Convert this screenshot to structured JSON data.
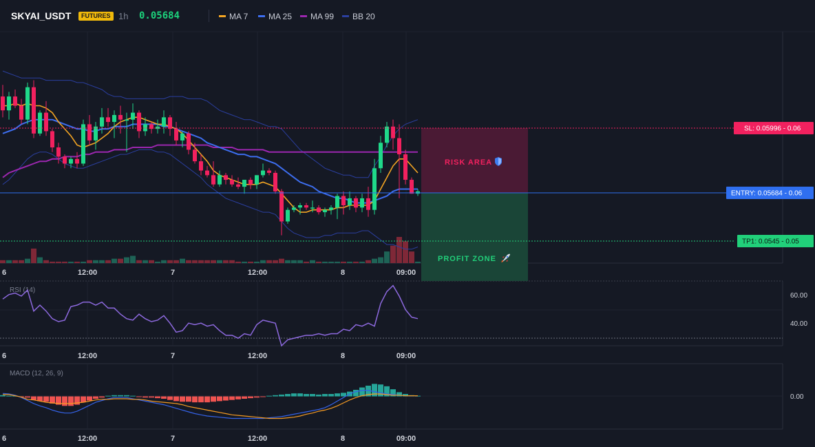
{
  "header": {
    "symbol": "SKYAI_USDT",
    "badge": "FUTURES",
    "timeframe": "1h",
    "last_price": "0.05684",
    "legend": [
      {
        "label": "MA 7",
        "color": "#f5a623"
      },
      {
        "label": "MA 25",
        "color": "#3d6ef0"
      },
      {
        "label": "MA 99",
        "color": "#9c27b0"
      },
      {
        "label": "BB 20",
        "color": "#2b3fa0"
      }
    ]
  },
  "colors": {
    "background": "#151924",
    "up": "#1fd98a",
    "down": "#f2215f",
    "grid": "#232838",
    "entry": "#2f6ff0",
    "sl": "#f2215f",
    "tp": "#21d07a",
    "rsi": "#8e6ae0",
    "macd_line": "#3563e9",
    "macd_signal": "#f59b23",
    "hist_up": "#26a69a",
    "hist_down": "#ef5350"
  },
  "annotations": {
    "risk_label": "RISK AREA",
    "profit_label": "PROFIT ZONE",
    "sl_label": "SL: 0.05996 - 0.06",
    "entry_label": "ENTRY: 0.05684 - 0.06",
    "tp_label": "TP1: 0.0545 - 0.05"
  },
  "chart_data": [
    {
      "type": "candlestick",
      "title": "SKYAI_USDT",
      "x_tick_labels": [
        "6",
        "12:00",
        "7",
        "12:00",
        "8",
        "09:00"
      ],
      "y_range": [
        0.0538,
        0.0638
      ],
      "levels": {
        "sl": 0.05996,
        "entry": 0.05684,
        "tp1": 0.0545
      },
      "candles": [
        [
          0.061,
          0.0615,
          0.0601,
          0.0604
        ],
        [
          0.0604,
          0.0612,
          0.06,
          0.061
        ],
        [
          0.061,
          0.0613,
          0.0605,
          0.0606
        ],
        [
          0.0606,
          0.0609,
          0.0598,
          0.06
        ],
        [
          0.06,
          0.0616,
          0.0598,
          0.0614
        ],
        [
          0.0614,
          0.0617,
          0.0592,
          0.0594
        ],
        [
          0.0594,
          0.0604,
          0.0593,
          0.0603
        ],
        [
          0.0603,
          0.0608,
          0.0593,
          0.0595
        ],
        [
          0.0595,
          0.0596,
          0.0586,
          0.0588
        ],
        [
          0.0588,
          0.059,
          0.0581,
          0.0584
        ],
        [
          0.0584,
          0.0585,
          0.0579,
          0.0581
        ],
        [
          0.0581,
          0.0584,
          0.0579,
          0.0583
        ],
        [
          0.0583,
          0.0586,
          0.0579,
          0.0581
        ],
        [
          0.0581,
          0.06,
          0.058,
          0.0598
        ],
        [
          0.0598,
          0.0602,
          0.0589,
          0.0591
        ],
        [
          0.0591,
          0.0599,
          0.0587,
          0.0597
        ],
        [
          0.0597,
          0.0605,
          0.0594,
          0.0601
        ],
        [
          0.0601,
          0.0605,
          0.0597,
          0.0599
        ],
        [
          0.0599,
          0.0604,
          0.0592,
          0.0602
        ],
        [
          0.0602,
          0.0606,
          0.0594,
          0.06
        ],
        [
          0.06,
          0.0603,
          0.0586,
          0.06
        ],
        [
          0.06,
          0.0607,
          0.0596,
          0.0603
        ],
        [
          0.0603,
          0.0604,
          0.0592,
          0.0595
        ],
        [
          0.0595,
          0.0601,
          0.0593,
          0.0598
        ],
        [
          0.0598,
          0.0599,
          0.0594,
          0.0596
        ],
        [
          0.0596,
          0.06,
          0.0594,
          0.0597
        ],
        [
          0.0597,
          0.0604,
          0.0594,
          0.0601
        ],
        [
          0.0601,
          0.0602,
          0.0593,
          0.0596
        ],
        [
          0.0596,
          0.0599,
          0.0589,
          0.0591
        ],
        [
          0.0591,
          0.0595,
          0.0588,
          0.0594
        ],
        [
          0.0594,
          0.0595,
          0.0585,
          0.0587
        ],
        [
          0.0587,
          0.059,
          0.0581,
          0.0582
        ],
        [
          0.0582,
          0.0585,
          0.0576,
          0.0578
        ],
        [
          0.0578,
          0.058,
          0.0575,
          0.0576
        ],
        [
          0.0576,
          0.0582,
          0.0571,
          0.0572
        ],
        [
          0.0572,
          0.0578,
          0.0571,
          0.0576
        ],
        [
          0.0576,
          0.0577,
          0.0572,
          0.0574
        ],
        [
          0.0574,
          0.0576,
          0.0571,
          0.0572
        ],
        [
          0.0572,
          0.0575,
          0.057,
          0.0571
        ],
        [
          0.0571,
          0.0574,
          0.0568,
          0.0574
        ],
        [
          0.0574,
          0.0575,
          0.057,
          0.0572
        ],
        [
          0.0572,
          0.0576,
          0.057,
          0.0576
        ],
        [
          0.0576,
          0.0581,
          0.0575,
          0.0578
        ],
        [
          0.0578,
          0.0579,
          0.0576,
          0.0577
        ],
        [
          0.0577,
          0.0578,
          0.0568,
          0.0569
        ],
        [
          0.0569,
          0.057,
          0.055,
          0.0556
        ],
        [
          0.0556,
          0.0562,
          0.0555,
          0.0561
        ],
        [
          0.0561,
          0.0563,
          0.056,
          0.0562
        ],
        [
          0.0562,
          0.0564,
          0.0559,
          0.0563
        ],
        [
          0.0563,
          0.0564,
          0.0561,
          0.0562
        ],
        [
          0.0562,
          0.0565,
          0.056,
          0.0562
        ],
        [
          0.0562,
          0.0563,
          0.0559,
          0.056
        ],
        [
          0.056,
          0.0562,
          0.0558,
          0.0561
        ],
        [
          0.0561,
          0.0563,
          0.0559,
          0.0562
        ],
        [
          0.0562,
          0.0568,
          0.0557,
          0.0567
        ],
        [
          0.0567,
          0.0569,
          0.0559,
          0.0563
        ],
        [
          0.0563,
          0.0569,
          0.0561,
          0.0566
        ],
        [
          0.0566,
          0.0567,
          0.056,
          0.0562
        ],
        [
          0.0562,
          0.0568,
          0.056,
          0.0566
        ],
        [
          0.0566,
          0.0571,
          0.0558,
          0.0561
        ],
        [
          0.0561,
          0.0583,
          0.0559,
          0.0579
        ],
        [
          0.0579,
          0.0593,
          0.0577,
          0.059
        ],
        [
          0.059,
          0.0599,
          0.0588,
          0.0597
        ],
        [
          0.0597,
          0.06,
          0.0587,
          0.0592
        ],
        [
          0.0592,
          0.0598,
          0.0566,
          0.0585
        ],
        [
          0.0585,
          0.0587,
          0.0572,
          0.0574
        ],
        [
          0.0574,
          0.0575,
          0.0568,
          0.0568
        ],
        [
          0.0568,
          0.057,
          0.0567,
          0.0569
        ]
      ],
      "ma7": [
        0.0606,
        0.0606,
        0.0607,
        0.0606,
        0.0607,
        0.0606,
        0.0606,
        0.0605,
        0.0603,
        0.0599,
        0.0596,
        0.0593,
        0.0589,
        0.0588,
        0.0589,
        0.059,
        0.0592,
        0.0594,
        0.0597,
        0.0599,
        0.06,
        0.0601,
        0.0601,
        0.06,
        0.0599,
        0.0598,
        0.0598,
        0.0597,
        0.0596,
        0.0594,
        0.0591,
        0.0588,
        0.0585,
        0.0582,
        0.0578,
        0.0576,
        0.0575,
        0.0574,
        0.0573,
        0.0572,
        0.0572,
        0.0572,
        0.0573,
        0.0572,
        0.0571,
        0.0568,
        0.0565,
        0.0562,
        0.056,
        0.056,
        0.0561,
        0.0561,
        0.0561,
        0.0561,
        0.0562,
        0.0562,
        0.0563,
        0.0563,
        0.0563,
        0.0563,
        0.0565,
        0.057,
        0.0575,
        0.058,
        0.0583,
        0.0583,
        0.058,
        0.0577
      ],
      "ma25": [
        0.0594,
        0.0595,
        0.0596,
        0.0598,
        0.0599,
        0.06,
        0.06,
        0.06,
        0.06,
        0.0599,
        0.0598,
        0.0597,
        0.0596,
        0.0596,
        0.0595,
        0.0595,
        0.0596,
        0.0596,
        0.0597,
        0.0597,
        0.0597,
        0.0598,
        0.0598,
        0.0598,
        0.0598,
        0.0598,
        0.0597,
        0.0597,
        0.0596,
        0.0595,
        0.0594,
        0.0593,
        0.0592,
        0.059,
        0.0589,
        0.0588,
        0.0587,
        0.0586,
        0.0585,
        0.0585,
        0.0584,
        0.0584,
        0.0583,
        0.0582,
        0.0581,
        0.0579,
        0.0577,
        0.0575,
        0.0573,
        0.0572,
        0.0571,
        0.0569,
        0.0568,
        0.0567,
        0.0566,
        0.0566,
        0.0565,
        0.0564,
        0.0564,
        0.0564,
        0.0565,
        0.0566,
        0.0567,
        0.0569,
        0.057,
        0.057,
        0.057,
        0.057
      ],
      "ma99": [
        0.0575,
        0.0577,
        0.0578,
        0.0579,
        0.058,
        0.0581,
        0.0582,
        0.0582,
        0.0583,
        0.0583,
        0.0584,
        0.0584,
        0.0584,
        0.0585,
        0.0585,
        0.0586,
        0.0586,
        0.0586,
        0.0587,
        0.0587,
        0.0587,
        0.0588,
        0.0588,
        0.0588,
        0.0588,
        0.0589,
        0.0589,
        0.0589,
        0.0589,
        0.0589,
        0.0589,
        0.0589,
        0.0589,
        0.0589,
        0.0588,
        0.0588,
        0.0588,
        0.0588,
        0.0587,
        0.0587,
        0.0587,
        0.0587,
        0.0587,
        0.0586,
        0.0586,
        0.0586,
        0.0586,
        0.0586,
        0.0586,
        0.0586,
        0.0586,
        0.0586,
        0.0586,
        0.0586,
        0.0586,
        0.0586,
        0.0586,
        0.0586,
        0.0586,
        0.0586,
        0.0586,
        0.0586,
        0.0586,
        0.0586,
        0.0586,
        0.0586,
        0.0586,
        0.0586
      ],
      "bb_upper": [
        0.0621,
        0.062,
        0.0619,
        0.0618,
        0.0618,
        0.0618,
        0.0618,
        0.0617,
        0.0617,
        0.0617,
        0.0617,
        0.0617,
        0.0616,
        0.0616,
        0.0615,
        0.0614,
        0.0613,
        0.0611,
        0.061,
        0.061,
        0.0609,
        0.0609,
        0.0609,
        0.0609,
        0.0609,
        0.0609,
        0.0609,
        0.061,
        0.061,
        0.061,
        0.0609,
        0.0609,
        0.0609,
        0.0608,
        0.0606,
        0.0604,
        0.0603,
        0.0602,
        0.0601,
        0.06,
        0.06,
        0.0599,
        0.0598,
        0.0597,
        0.0597,
        0.0596,
        0.0593,
        0.059,
        0.0587,
        0.0585,
        0.0583,
        0.0581,
        0.0579,
        0.0578,
        0.0577,
        0.0576,
        0.0576,
        0.0575,
        0.0575,
        0.0575,
        0.058,
        0.0584,
        0.0589,
        0.0593,
        0.0596,
        0.0598,
        0.0599,
        0.06
      ],
      "bb_lower": [
        0.0572,
        0.0574,
        0.0577,
        0.058,
        0.0583,
        0.0585,
        0.0586,
        0.0586,
        0.0585,
        0.0583,
        0.0581,
        0.058,
        0.0579,
        0.0579,
        0.058,
        0.0581,
        0.0582,
        0.0583,
        0.0584,
        0.0585,
        0.0585,
        0.0586,
        0.0587,
        0.0587,
        0.0587,
        0.0586,
        0.0586,
        0.0585,
        0.0583,
        0.0581,
        0.0579,
        0.0577,
        0.0575,
        0.0572,
        0.057,
        0.0568,
        0.0566,
        0.0565,
        0.0564,
        0.0563,
        0.0562,
        0.0561,
        0.056,
        0.056,
        0.0559,
        0.0556,
        0.0553,
        0.0551,
        0.055,
        0.0549,
        0.0549,
        0.0549,
        0.055,
        0.055,
        0.0551,
        0.0551,
        0.0551,
        0.0551,
        0.0552,
        0.0552,
        0.055,
        0.0548,
        0.0546,
        0.0546,
        0.0545,
        0.0544,
        0.0544,
        0.0545
      ],
      "volume": [
        2,
        2,
        2,
        2,
        3,
        10,
        4,
        2,
        1,
        1,
        1,
        1,
        1,
        1,
        2,
        2,
        2,
        2,
        3,
        3,
        4,
        5,
        2,
        2,
        2,
        1,
        2,
        2,
        2,
        3,
        2,
        2,
        2,
        2,
        2,
        2,
        2,
        2,
        1,
        1,
        1,
        1,
        2,
        2,
        2,
        3,
        2,
        2,
        2,
        1,
        2,
        1,
        1,
        1,
        1,
        1,
        1,
        1,
        1,
        2,
        3,
        4,
        8,
        12,
        18,
        15,
        8,
        1
      ]
    },
    {
      "type": "line",
      "title": "RSI (14)",
      "y_tick_labels": [
        "60.00",
        "40.00"
      ],
      "y_range": [
        27,
        70
      ],
      "series": [
        {
          "values": [
            58,
            61,
            62,
            60,
            64,
            50,
            54,
            50,
            45,
            43,
            44,
            53,
            54,
            56,
            56,
            54,
            56,
            52,
            52,
            48,
            45,
            44,
            48,
            45,
            43,
            44,
            47,
            42,
            36,
            37,
            42,
            41,
            42,
            40,
            41,
            37,
            34,
            34,
            32,
            35,
            34,
            41,
            44,
            43,
            42,
            27,
            31,
            32,
            33,
            34,
            34,
            35,
            34,
            35,
            35,
            38,
            37,
            41,
            40,
            42,
            40,
            55,
            63,
            67,
            60,
            51,
            46,
            45
          ]
        }
      ]
    },
    {
      "type": "bar",
      "title": "MACD (12, 26, 9)",
      "y_tick_labels": [
        "0.00"
      ],
      "y_range": [
        -0.00055,
        0.00055
      ],
      "series": [
        {
          "values": [
            2e-05,
            1e-05,
            1e-05,
            -1e-05,
            -2e-05,
            -6e-05,
            -8e-05,
            -9e-05,
            -0.00012,
            -0.00014,
            -0.00016,
            -0.00016,
            -0.00014,
            -0.0001,
            -7e-05,
            -4e-05,
            -2e-05,
            1e-05,
            2e-05,
            2e-05,
            2e-05,
            1e-05,
            -1e-05,
            -2e-05,
            -2e-05,
            -3e-05,
            -4e-05,
            -6e-05,
            -8e-05,
            -9e-05,
            -9e-05,
            -0.0001,
            -0.0001,
            -0.0001,
            -9e-05,
            -8e-05,
            -7e-05,
            -6e-05,
            -5e-05,
            -4e-05,
            -3e-05,
            -2e-05,
            -1e-05,
            1e-05,
            2e-05,
            3e-05,
            4e-05,
            5e-05,
            5e-05,
            4e-05,
            4e-05,
            3e-05,
            4e-05,
            4e-05,
            5e-05,
            6e-05,
            8e-05,
            0.00011,
            0.00015,
            0.00018,
            0.00021,
            0.0002,
            0.00017,
            0.00012,
            7e-05,
            4e-05,
            2e-05,
            1e-05
          ]
        },
        {
          "values": [
            5e-05,
            4e-05,
            2e-05,
            -2e-05,
            -7e-05,
            -0.00012,
            -0.00016,
            -0.00019,
            -0.00023,
            -0.00026,
            -0.00028,
            -0.00028,
            -0.00025,
            -0.0002,
            -0.00015,
            -0.0001,
            -7e-05,
            -4e-05,
            -2e-05,
            -2e-05,
            -2e-05,
            -4e-05,
            -6e-05,
            -8e-05,
            -0.0001,
            -0.00012,
            -0.00014,
            -0.00017,
            -0.0002,
            -0.00023,
            -0.00026,
            -0.00029,
            -0.00031,
            -0.00033,
            -0.00034,
            -0.00035,
            -0.00036,
            -0.00037,
            -0.00037,
            -0.00037,
            -0.00037,
            -0.00037,
            -0.00037,
            -0.00036,
            -0.00035,
            -0.00034,
            -0.00032,
            -0.0003,
            -0.00028,
            -0.00026,
            -0.00024,
            -0.00022,
            -0.00019,
            -0.00014,
            -8e-05,
            -2e-05,
            4e-05,
            8e-05,
            0.0001,
            0.0001,
            8e-05,
            6e-05,
            4e-05,
            3e-05,
            2e-05,
            1e-05,
            1e-05,
            1e-05
          ]
        },
        {
          "values": [
            3e-05,
            3e-05,
            1e-05,
            -1e-05,
            -5e-05,
            -6e-05,
            -8e-05,
            -0.0001,
            -0.00011,
            -0.00012,
            -0.00012,
            -0.00012,
            -0.00011,
            -0.0001,
            -8e-05,
            -6e-05,
            -5e-05,
            -5e-05,
            -4e-05,
            -4e-05,
            -4e-05,
            -5e-05,
            -5e-05,
            -6e-05,
            -8e-05,
            -9e-05,
            -0.0001,
            -0.00011,
            -0.00012,
            -0.00014,
            -0.00017,
            -0.00019,
            -0.00021,
            -0.00023,
            -0.00025,
            -0.00027,
            -0.00029,
            -0.00031,
            -0.00032,
            -0.00033,
            -0.00034,
            -0.00035,
            -0.00036,
            -0.00037,
            -0.00037,
            -0.00037,
            -0.00036,
            -0.00035,
            -0.00033,
            -0.0003,
            -0.00028,
            -0.00025,
            -0.00023,
            -0.0002,
            -0.00016,
            -0.00011,
            -6e-05,
            -2e-05,
            1e-05,
            3e-05,
            4e-05,
            4e-05,
            3e-05,
            2e-05,
            2e-05,
            1e-05,
            1e-05,
            1e-05
          ]
        }
      ]
    }
  ]
}
